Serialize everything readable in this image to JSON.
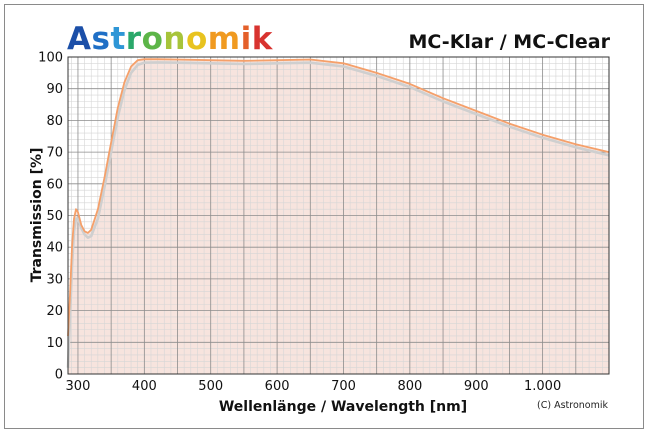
{
  "brand": {
    "name": "Astronomik",
    "letter_colors": [
      "#1b4fa8",
      "#1f6fc6",
      "#2e96d6",
      "#2aa86a",
      "#5cb548",
      "#a7c43a",
      "#e8c31f",
      "#f09a20",
      "#e4602a",
      "#d8332f"
    ]
  },
  "chart_data": {
    "type": "line",
    "title": "MC-Klar / MC-Clear",
    "xlabel": "Wellenlänge / Wavelength [nm]",
    "ylabel": "Transmission [%]",
    "xlim": [
      285,
      1100
    ],
    "ylim": [
      0,
      100
    ],
    "x_ticks": [
      {
        "value": 300,
        "label": "300"
      },
      {
        "value": 400,
        "label": "400"
      },
      {
        "value": 500,
        "label": "500"
      },
      {
        "value": 600,
        "label": "600"
      },
      {
        "value": 700,
        "label": "700"
      },
      {
        "value": 800,
        "label": "800"
      },
      {
        "value": 900,
        "label": "900"
      },
      {
        "value": 1000,
        "label": "1.000"
      }
    ],
    "y_ticks": [
      0,
      10,
      20,
      30,
      40,
      50,
      60,
      70,
      80,
      90,
      100
    ],
    "grid": true,
    "credit": "(C) Astronomik",
    "series": [
      {
        "color": "#f5a06a",
        "fill": "#f7e4de",
        "x": [
          285,
          288,
          291,
          294,
          297,
          300,
          305,
          310,
          315,
          320,
          330,
          340,
          350,
          360,
          370,
          380,
          390,
          400,
          420,
          450,
          500,
          550,
          600,
          650,
          700,
          750,
          800,
          850,
          900,
          950,
          1000,
          1050,
          1100
        ],
        "y": [
          12,
          25,
          40,
          49,
          52,
          51,
          47,
          45,
          44.5,
          45.5,
          52,
          62,
          73,
          84,
          92,
          97,
          99,
          99.3,
          99.3,
          99.2,
          99,
          98.8,
          99,
          99.2,
          98,
          95,
          91.5,
          87,
          83,
          79,
          75.5,
          72.5,
          70
        ]
      },
      {
        "color": "#cfcfcf",
        "x": [
          285,
          288,
          291,
          294,
          297,
          300,
          305,
          310,
          315,
          320,
          330,
          340,
          350,
          360,
          370,
          380,
          390,
          400,
          420,
          450,
          500,
          550,
          600,
          650,
          700,
          750,
          800,
          850,
          900,
          950,
          1000,
          1050,
          1100
        ],
        "y": [
          2,
          18,
          34,
          45,
          49,
          49,
          46,
          44,
          43,
          43.5,
          49,
          59,
          70,
          81,
          89.5,
          95,
          97.5,
          98.2,
          98.3,
          98.2,
          98,
          97.8,
          98,
          98.2,
          97,
          94,
          90.5,
          86,
          82,
          78,
          74.5,
          71.5,
          69
        ]
      }
    ]
  }
}
